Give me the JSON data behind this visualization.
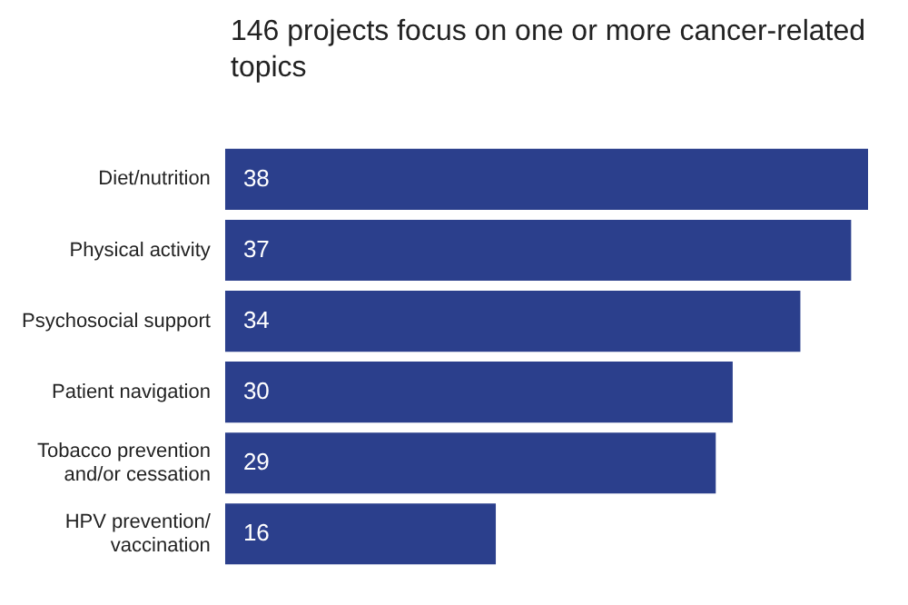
{
  "chart_data": {
    "type": "bar",
    "orientation": "horizontal",
    "title": "146 projects focus on one or more cancer-related topics",
    "categories": [
      "Diet/nutrition",
      "Physical activity",
      "Psychosocial support",
      "Patient navigation",
      "Tobacco prevention\nand/or cessation",
      "HPV prevention/\nvaccination"
    ],
    "values": [
      38,
      37,
      34,
      30,
      29,
      16
    ],
    "color": "#2b3f8c",
    "data_labels": true,
    "grid": false,
    "legend": false
  }
}
